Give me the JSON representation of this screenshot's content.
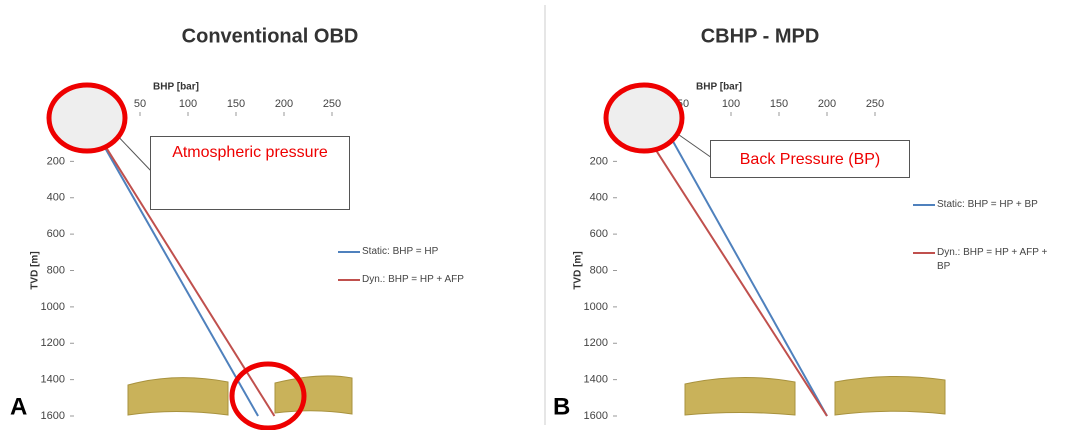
{
  "chart_data": [
    {
      "type": "line",
      "title": "Conventional OBD",
      "panel": "A",
      "x_label": "BHP [bar]",
      "y_label": "TVD [m]",
      "xlim": [
        0,
        250
      ],
      "xticks": [
        50,
        100,
        150,
        200,
        250
      ],
      "ylim": [
        0,
        1600
      ],
      "yticks": [
        200,
        400,
        600,
        800,
        1000,
        1200,
        1400,
        1600
      ],
      "y_inverted": true,
      "annotation": "Atmospheric pressure",
      "series": [
        {
          "name": "Static: BHP = HP",
          "color": "#4f81bd",
          "x": [
            0,
            173
          ],
          "y": [
            0,
            1600
          ]
        },
        {
          "name": "Dyn.: BHP = HP + AFP",
          "color": "#c0504d",
          "x": [
            0,
            190
          ],
          "y": [
            0,
            1600
          ]
        }
      ]
    },
    {
      "type": "line",
      "title": "CBHP - MPD",
      "panel": "B",
      "x_label": "BHP [bar]",
      "y_label": "TVD [m]",
      "xlim": [
        0,
        250
      ],
      "xticks": [
        50,
        100,
        150,
        200,
        250
      ],
      "ylim": [
        0,
        1600
      ],
      "yticks": [
        200,
        400,
        600,
        800,
        1000,
        1200,
        1400,
        1600
      ],
      "y_inverted": true,
      "annotation": "Back Pressure (BP)",
      "series": [
        {
          "name": "Static: BHP = HP + BP",
          "color": "#4f81bd",
          "x": [
            30,
            200
          ],
          "y": [
            0,
            1600
          ]
        },
        {
          "name": "Dyn.: BHP = HP + AFP + BP",
          "color": "#c0504d",
          "x": [
            5,
            200
          ],
          "y": [
            0,
            1600
          ]
        }
      ]
    }
  ]
}
